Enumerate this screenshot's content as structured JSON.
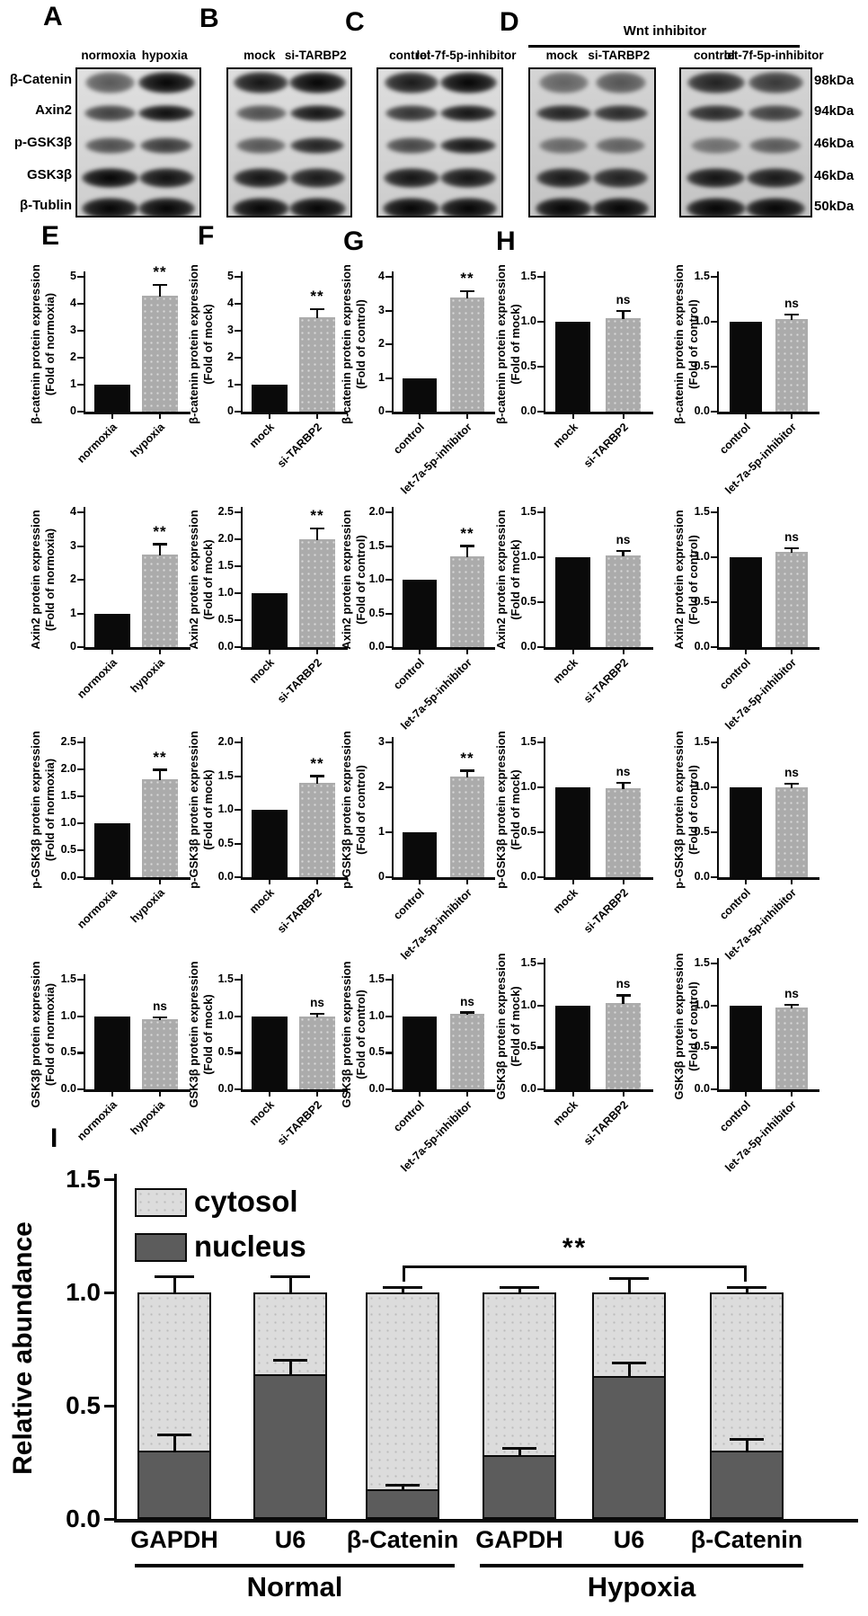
{
  "figure": {
    "letters": {
      "a": "A",
      "b": "B",
      "c": "C",
      "d": "D",
      "e": "E",
      "f": "F",
      "g": "G",
      "h": "H",
      "i": "I"
    }
  },
  "colors": {
    "black_bar": "#0a0a0a",
    "gray_bar": "#ababab",
    "cytosol": "#dcdcdc",
    "nucleus": "#5c5c5c"
  },
  "blots": {
    "wnt_inhibitor_label": "Wnt inhibitor",
    "row_labels": [
      "β-Catenin",
      "Axin2",
      "p-GSK3β",
      "GSK3β",
      "β-Tublin"
    ],
    "kda_labels": [
      "98kDa",
      "94kDa",
      "46kDa",
      "46kDa",
      "50kDa"
    ],
    "panels": [
      {
        "id": "A",
        "lanes": [
          "normoxia",
          "hypoxia"
        ],
        "band_intensity": [
          [
            0.45,
            1.0
          ],
          [
            0.6,
            0.95
          ],
          [
            0.5,
            0.65
          ],
          [
            1.0,
            0.92
          ],
          [
            1.0,
            1.0
          ]
        ]
      },
      {
        "id": "B",
        "lanes": [
          "mock",
          "si-TARBP2"
        ],
        "band_intensity": [
          [
            0.9,
            1.0
          ],
          [
            0.5,
            0.9
          ],
          [
            0.45,
            0.8
          ],
          [
            0.9,
            0.85
          ],
          [
            1.0,
            1.0
          ]
        ]
      },
      {
        "id": "C",
        "lanes": [
          "control",
          "let-7f-5p-inhibitor"
        ],
        "band_intensity": [
          [
            0.85,
            1.0
          ],
          [
            0.7,
            0.9
          ],
          [
            0.55,
            0.9
          ],
          [
            0.9,
            0.9
          ],
          [
            1.0,
            1.0
          ]
        ]
      },
      {
        "id": "D1",
        "lanes": [
          "mock",
          "si-TARBP2"
        ],
        "under_wnt_inhibitor": true,
        "band_intensity": [
          [
            0.35,
            0.45
          ],
          [
            0.8,
            0.75
          ],
          [
            0.3,
            0.35
          ],
          [
            0.85,
            0.8
          ],
          [
            1.0,
            1.0
          ]
        ]
      },
      {
        "id": "D2",
        "lanes": [
          "control",
          "let-7f-5p-inhibitor"
        ],
        "under_wnt_inhibitor": true,
        "band_intensity": [
          [
            0.8,
            0.65
          ],
          [
            0.75,
            0.6
          ],
          [
            0.25,
            0.4
          ],
          [
            0.9,
            0.85
          ],
          [
            1.0,
            1.0
          ]
        ]
      }
    ]
  },
  "chart_data": [
    {
      "type": "bar",
      "id": "r1c1",
      "grid": {
        "row": 1,
        "col": 1
      },
      "ylabel_line1": "β-catenin protein expression",
      "ylabel_line2": "(Fold of normoxia)",
      "ylim": [
        0,
        5
      ],
      "yticks": [
        "0",
        "1",
        "2",
        "3",
        "4",
        "5"
      ],
      "categories": [
        "normoxia",
        "hypoxia"
      ],
      "values": [
        1.0,
        4.3
      ],
      "errors": [
        0,
        0.4
      ],
      "sig": "**",
      "bar_colors": [
        "#0a0a0a",
        "#ababab"
      ]
    },
    {
      "type": "bar",
      "id": "r1c2",
      "grid": {
        "row": 1,
        "col": 2
      },
      "ylabel_line1": "β-catenin protein expression",
      "ylabel_line2": "(Fold of mock)",
      "ylim": [
        0,
        5
      ],
      "yticks": [
        "0",
        "1",
        "2",
        "3",
        "4",
        "5"
      ],
      "categories": [
        "mock",
        "si-TARBP2"
      ],
      "values": [
        1.0,
        3.5
      ],
      "errors": [
        0,
        0.3
      ],
      "sig": "**",
      "bar_colors": [
        "#0a0a0a",
        "#ababab"
      ]
    },
    {
      "type": "bar",
      "id": "r1c3",
      "grid": {
        "row": 1,
        "col": 3
      },
      "ylabel_line1": "β-catenin protein expression",
      "ylabel_line2": "(Fold of control)",
      "ylim": [
        0,
        4
      ],
      "yticks": [
        "0",
        "1",
        "2",
        "3",
        "4"
      ],
      "categories": [
        "control",
        "let-7a-5p-inhibitor"
      ],
      "values": [
        1.0,
        3.4
      ],
      "errors": [
        0,
        0.17
      ],
      "sig": "**",
      "bar_colors": [
        "#0a0a0a",
        "#ababab"
      ]
    },
    {
      "type": "bar",
      "id": "r1c4",
      "grid": {
        "row": 1,
        "col": 4
      },
      "ylabel_line1": "β-catenin protein expression",
      "ylabel_line2": "(Fold of mock)",
      "ylim": [
        0,
        1.5
      ],
      "yticks": [
        "0.0",
        "0.5",
        "1.0",
        "1.5"
      ],
      "categories": [
        "mock",
        "si-TARBP2"
      ],
      "values": [
        1.0,
        1.04
      ],
      "errors": [
        0,
        0.08
      ],
      "sig": "ns",
      "bar_colors": [
        "#0a0a0a",
        "#ababab"
      ]
    },
    {
      "type": "bar",
      "id": "r1c5",
      "grid": {
        "row": 1,
        "col": 5
      },
      "ylabel_line1": "β-catenin protein expression",
      "ylabel_line2": "(Fold of control)",
      "ylim": [
        0,
        1.5
      ],
      "yticks": [
        "0.0",
        "0.5",
        "1.0",
        "1.5"
      ],
      "categories": [
        "control",
        "let-7a-5p-inhibitor"
      ],
      "values": [
        1.0,
        1.03
      ],
      "errors": [
        0,
        0.05
      ],
      "sig": "ns",
      "bar_colors": [
        "#0a0a0a",
        "#ababab"
      ]
    },
    {
      "type": "bar",
      "id": "r2c1",
      "grid": {
        "row": 2,
        "col": 1
      },
      "ylabel_line1": "Axin2 protein expression",
      "ylabel_line2": "(Fold of normoxia)",
      "ylim": [
        0,
        4
      ],
      "yticks": [
        "0",
        "1",
        "2",
        "3",
        "4"
      ],
      "categories": [
        "normoxia",
        "hypoxia"
      ],
      "values": [
        1.0,
        2.75
      ],
      "errors": [
        0,
        0.3
      ],
      "sig": "**",
      "bar_colors": [
        "#0a0a0a",
        "#ababab"
      ]
    },
    {
      "type": "bar",
      "id": "r2c2",
      "grid": {
        "row": 2,
        "col": 2
      },
      "ylabel_line1": "Axin2 protein expression",
      "ylabel_line2": "(Fold of mock)",
      "ylim": [
        0,
        2.5
      ],
      "yticks": [
        "0.0",
        "0.5",
        "1.0",
        "1.5",
        "2.0",
        "2.5"
      ],
      "categories": [
        "mock",
        "si-TARBP2"
      ],
      "values": [
        1.0,
        2.0
      ],
      "errors": [
        0,
        0.2
      ],
      "sig": "**",
      "bar_colors": [
        "#0a0a0a",
        "#ababab"
      ]
    },
    {
      "type": "bar",
      "id": "r2c3",
      "grid": {
        "row": 2,
        "col": 3
      },
      "ylabel_line1": "Axin2 protein expression",
      "ylabel_line2": "(Fold of control)",
      "ylim": [
        0,
        2
      ],
      "yticks": [
        "0.0",
        "0.5",
        "1.0",
        "1.5",
        "2.0"
      ],
      "categories": [
        "control",
        "let-7a-5p-inhibitor"
      ],
      "values": [
        1.0,
        1.35
      ],
      "errors": [
        0,
        0.15
      ],
      "sig": "**",
      "bar_colors": [
        "#0a0a0a",
        "#ababab"
      ]
    },
    {
      "type": "bar",
      "id": "r2c4",
      "grid": {
        "row": 2,
        "col": 4
      },
      "ylabel_line1": "Axin2 protein expression",
      "ylabel_line2": "(Fold of mock)",
      "ylim": [
        0,
        1.5
      ],
      "yticks": [
        "0.0",
        "0.5",
        "1.0",
        "1.5"
      ],
      "categories": [
        "mock",
        "si-TARBP2"
      ],
      "values": [
        1.0,
        1.02
      ],
      "errors": [
        0,
        0.05
      ],
      "sig": "ns",
      "bar_colors": [
        "#0a0a0a",
        "#ababab"
      ]
    },
    {
      "type": "bar",
      "id": "r2c5",
      "grid": {
        "row": 2,
        "col": 5
      },
      "ylabel_line1": "Axin2 protein expression",
      "ylabel_line2": "(Fold of control)",
      "ylim": [
        0,
        1.5
      ],
      "yticks": [
        "0.0",
        "0.5",
        "1.0",
        "1.5"
      ],
      "categories": [
        "control",
        "let-7a-5p-inhibitor"
      ],
      "values": [
        1.0,
        1.06
      ],
      "errors": [
        0,
        0.04
      ],
      "sig": "ns",
      "bar_colors": [
        "#0a0a0a",
        "#ababab"
      ]
    },
    {
      "type": "bar",
      "id": "r3c1",
      "grid": {
        "row": 3,
        "col": 1
      },
      "ylabel_line1": "p-GSK3β protein expression",
      "ylabel_line2": "(Fold of normoxia)",
      "ylim": [
        0,
        2.5
      ],
      "yticks": [
        "0.0",
        "0.5",
        "1.0",
        "1.5",
        "2.0",
        "2.5"
      ],
      "categories": [
        "normoxia",
        "hypoxia"
      ],
      "values": [
        1.0,
        1.82
      ],
      "errors": [
        0,
        0.17
      ],
      "sig": "**",
      "bar_colors": [
        "#0a0a0a",
        "#ababab"
      ]
    },
    {
      "type": "bar",
      "id": "r3c2",
      "grid": {
        "row": 3,
        "col": 2
      },
      "ylabel_line1": "p-GSK3β protein expression",
      "ylabel_line2": "(Fold of mock)",
      "ylim": [
        0,
        2
      ],
      "yticks": [
        "0.0",
        "0.5",
        "1.0",
        "1.5",
        "2.0"
      ],
      "categories": [
        "mock",
        "si-TARBP2"
      ],
      "values": [
        1.0,
        1.4
      ],
      "errors": [
        0,
        0.1
      ],
      "sig": "**",
      "bar_colors": [
        "#0a0a0a",
        "#ababab"
      ]
    },
    {
      "type": "bar",
      "id": "r3c3",
      "grid": {
        "row": 3,
        "col": 3
      },
      "ylabel_line1": "p-GSK3β protein expression",
      "ylabel_line2": "(Fold of control)",
      "ylim": [
        0,
        3
      ],
      "yticks": [
        "0",
        "1",
        "2",
        "3"
      ],
      "categories": [
        "control",
        "let-7a-5p-inhibitor"
      ],
      "values": [
        1.0,
        2.25
      ],
      "errors": [
        0,
        0.12
      ],
      "sig": "**",
      "bar_colors": [
        "#0a0a0a",
        "#ababab"
      ]
    },
    {
      "type": "bar",
      "id": "r3c4",
      "grid": {
        "row": 3,
        "col": 4
      },
      "ylabel_line1": "p-GSK3β protein expression",
      "ylabel_line2": "(Fold of mock)",
      "ylim": [
        0,
        1.5
      ],
      "yticks": [
        "0.0",
        "0.5",
        "1.0",
        "1.5"
      ],
      "categories": [
        "mock",
        "si-TARBP2"
      ],
      "values": [
        1.0,
        0.99
      ],
      "errors": [
        0,
        0.06
      ],
      "sig": "ns",
      "bar_colors": [
        "#0a0a0a",
        "#ababab"
      ]
    },
    {
      "type": "bar",
      "id": "r3c5",
      "grid": {
        "row": 3,
        "col": 5
      },
      "ylabel_line1": "p-GSK3β protein expression",
      "ylabel_line2": "(Fold of control)",
      "ylim": [
        0,
        1.5
      ],
      "yticks": [
        "0.0",
        "0.5",
        "1.0",
        "1.5"
      ],
      "categories": [
        "control",
        "let-7a-5p-inhibitor"
      ],
      "values": [
        1.0,
        1.0
      ],
      "errors": [
        0,
        0.04
      ],
      "sig": "ns",
      "bar_colors": [
        "#0a0a0a",
        "#ababab"
      ]
    },
    {
      "type": "bar",
      "id": "r4c1",
      "grid": {
        "row": 4,
        "col": 1
      },
      "ylabel_line1": "GSK3β protein expression",
      "ylabel_line2": "(Fold of normoxia)",
      "ylim": [
        0,
        1.5
      ],
      "yticks": [
        "0.0",
        "0.5",
        "1.0",
        "1.5"
      ],
      "categories": [
        "normoxia",
        "hypoxia"
      ],
      "values": [
        1.0,
        0.96
      ],
      "errors": [
        0,
        0.02
      ],
      "sig": "ns",
      "bar_colors": [
        "#0a0a0a",
        "#ababab"
      ]
    },
    {
      "type": "bar",
      "id": "r4c2",
      "grid": {
        "row": 4,
        "col": 2
      },
      "ylabel_line1": "GSK3β protein expression",
      "ylabel_line2": "(Fold of mock)",
      "ylim": [
        0,
        1.5
      ],
      "yticks": [
        "0.0",
        "0.5",
        "1.0",
        "1.5"
      ],
      "categories": [
        "mock",
        "si-TARBP2"
      ],
      "values": [
        1.0,
        1.0
      ],
      "errors": [
        0,
        0.03
      ],
      "sig": "ns",
      "bar_colors": [
        "#0a0a0a",
        "#ababab"
      ]
    },
    {
      "type": "bar",
      "id": "r4c3",
      "grid": {
        "row": 4,
        "col": 3
      },
      "ylabel_line1": "GSK3β protein expression",
      "ylabel_line2": "(Fold of control)",
      "ylim": [
        0,
        1.5
      ],
      "yticks": [
        "0.0",
        "0.5",
        "1.0",
        "1.5"
      ],
      "categories": [
        "control",
        "let-7a-5p-inhibitor"
      ],
      "values": [
        1.0,
        1.03
      ],
      "errors": [
        0,
        0.02
      ],
      "sig": "ns",
      "bar_colors": [
        "#0a0a0a",
        "#ababab"
      ]
    },
    {
      "type": "bar",
      "id": "r4c4",
      "grid": {
        "row": 4,
        "col": 4
      },
      "ylabel_line1": "GSK3β protein expression",
      "ylabel_line2": "(Fold of mock)",
      "ylim": [
        0,
        1.5
      ],
      "yticks": [
        "0.0",
        "0.5",
        "1.0",
        "1.5"
      ],
      "categories": [
        "mock",
        "si-TARBP2"
      ],
      "values": [
        1.0,
        1.03
      ],
      "errors": [
        0,
        0.09
      ],
      "sig": "ns",
      "bar_colors": [
        "#0a0a0a",
        "#ababab"
      ]
    },
    {
      "type": "bar",
      "id": "r4c5",
      "grid": {
        "row": 4,
        "col": 5
      },
      "ylabel_line1": "GSK3β protein expression",
      "ylabel_line2": "(Fold of control)",
      "ylim": [
        0,
        1.5
      ],
      "yticks": [
        "0.0",
        "0.5",
        "1.0",
        "1.5"
      ],
      "categories": [
        "control",
        "let-7a-5p-inhibitor"
      ],
      "values": [
        1.0,
        0.98
      ],
      "errors": [
        0,
        0.03
      ],
      "sig": "ns",
      "bar_colors": [
        "#0a0a0a",
        "#ababab"
      ]
    },
    {
      "type": "stacked-bar",
      "id": "panel-I",
      "ylabel": "Relative abundance",
      "ylim": [
        0,
        1.5
      ],
      "yticks": [
        "0.0",
        "0.5",
        "1.0",
        "1.5"
      ],
      "categories": [
        "GAPDH",
        "U6",
        "β-Catenin",
        "GAPDH",
        "U6",
        "β-Catenin"
      ],
      "groups": [
        {
          "label": "Normal",
          "span": [
            0,
            2
          ]
        },
        {
          "label": "Hypoxia",
          "span": [
            3,
            5
          ]
        }
      ],
      "legend": [
        {
          "label": "cytosol",
          "color": "#dcdcdc"
        },
        {
          "label": "nucleus",
          "color": "#5c5c5c"
        }
      ],
      "series": [
        {
          "name": "nucleus",
          "color": "#5c5c5c",
          "values": [
            0.3,
            0.64,
            0.13,
            0.28,
            0.63,
            0.3
          ],
          "errors": [
            0.07,
            0.06,
            0.02,
            0.03,
            0.06,
            0.05
          ]
        },
        {
          "name": "cytosol",
          "color": "#dcdcdc",
          "values": [
            0.7,
            0.36,
            0.87,
            0.72,
            0.37,
            0.7
          ],
          "errors": [
            0.07,
            0.07,
            0.02,
            0.02,
            0.06,
            0.02
          ]
        }
      ],
      "bar_totals": [
        1.0,
        1.0,
        1.0,
        1.0,
        1.0,
        1.0
      ],
      "significance": {
        "label": "**",
        "from_category_index": 2,
        "to_category_index": 5
      }
    }
  ]
}
